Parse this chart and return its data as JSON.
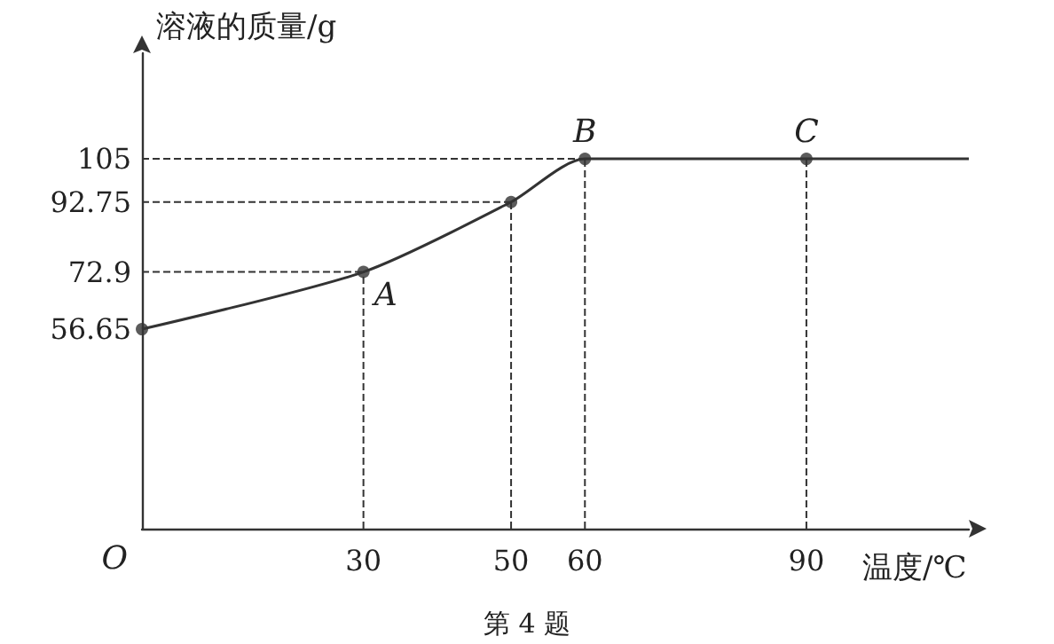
{
  "chart_data": {
    "type": "line",
    "ylabel": "溶液的质量/g",
    "xlabel": "温度/℃",
    "xlim": [
      0,
      112
    ],
    "xticks": [
      30,
      50,
      60,
      90
    ],
    "ylim": [
      0,
      135
    ],
    "yticks": [
      56.65,
      72.9,
      92.75,
      105
    ],
    "grid": false,
    "series": [
      {
        "color": "#333333",
        "marker": "none",
        "x": [
          0,
          30,
          50,
          60,
          90,
          112
        ],
        "values": [
          56.65,
          72.9,
          92.75,
          105,
          105,
          105
        ]
      },
      {
        "type": "scatter",
        "marker": "circle",
        "color": "#333333",
        "x": [
          0,
          30,
          50,
          60,
          90
        ],
        "values": [
          56.65,
          72.9,
          92.75,
          105,
          105
        ]
      },
      {
        "color": "#333333",
        "marker": "none",
        "line_style": "dashed",
        "x": [
          0,
          30
        ],
        "values": [
          72.9,
          72.9
        ]
      },
      {
        "color": "#333333",
        "marker": "none",
        "line_style": "dashed",
        "x": [
          30,
          30
        ],
        "values": [
          0,
          72.9
        ]
      },
      {
        "color": "#333333",
        "marker": "none",
        "line_style": "dashed",
        "x": [
          0,
          50
        ],
        "values": [
          92.75,
          92.75
        ]
      },
      {
        "color": "#333333",
        "marker": "none",
        "line_style": "dashed",
        "x": [
          50,
          50
        ],
        "values": [
          0,
          92.75
        ]
      },
      {
        "color": "#333333",
        "marker": "none",
        "line_style": "dashed",
        "x": [
          0,
          60
        ],
        "values": [
          105,
          105
        ]
      },
      {
        "color": "#333333",
        "marker": "none",
        "line_style": "dashed",
        "x": [
          60,
          60
        ],
        "values": [
          0,
          105
        ]
      },
      {
        "color": "#333333",
        "marker": "none",
        "line_style": "dashed",
        "x": [
          90,
          90
        ],
        "values": [
          0,
          105
        ]
      }
    ],
    "annotations": [
      "O",
      {
        "text": "A",
        "x": 30,
        "y": 72.9
      },
      {
        "text": "B",
        "x": 60,
        "y": 105
      },
      {
        "text": "C",
        "x": 90,
        "y": 105
      },
      "第 4 题"
    ]
  }
}
